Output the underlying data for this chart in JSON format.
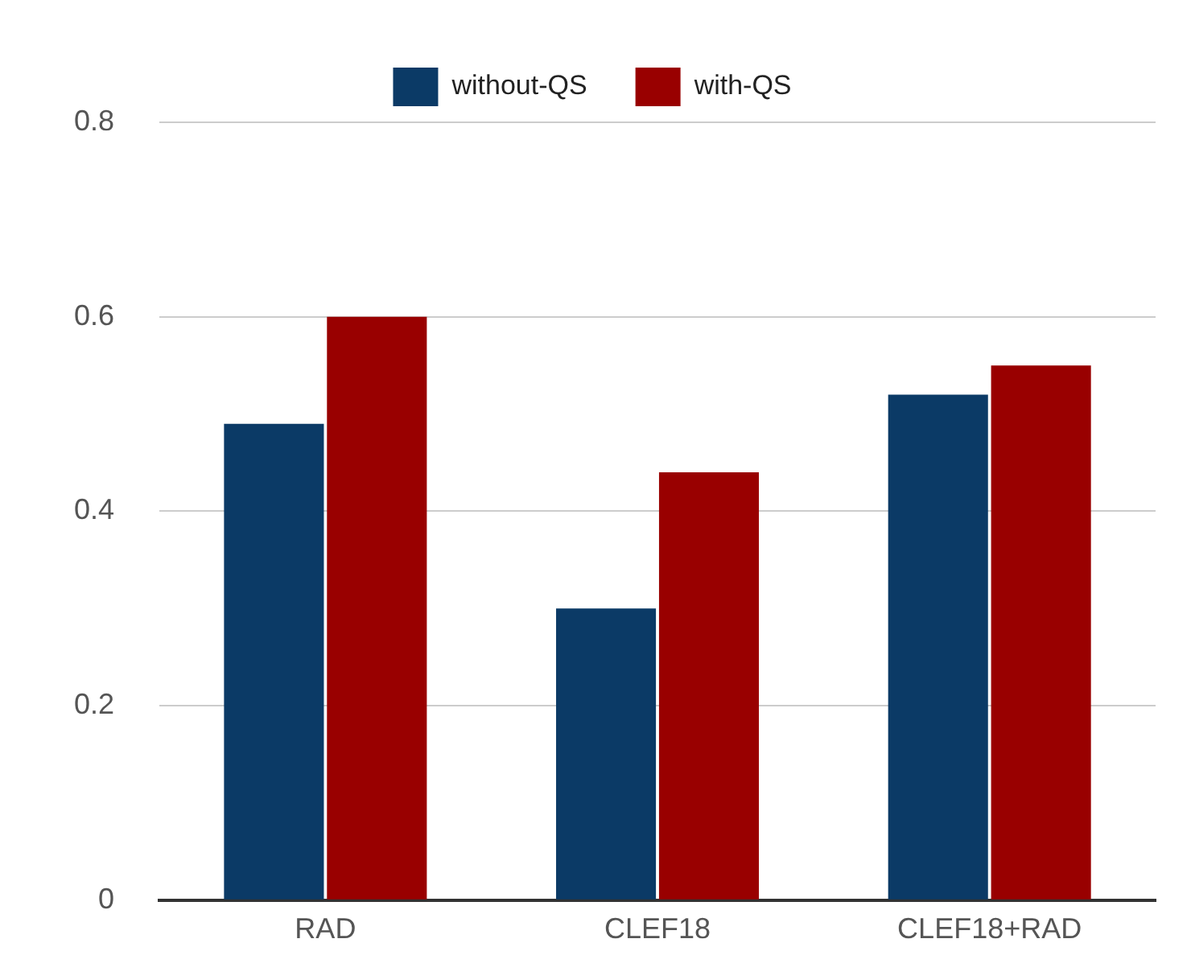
{
  "chart_data": {
    "type": "bar",
    "categories": [
      "RAD",
      "CLEF18",
      "CLEF18+RAD"
    ],
    "series": [
      {
        "name": "without-QS",
        "color": "#0b3a66",
        "values": [
          0.49,
          0.3,
          0.52
        ]
      },
      {
        "name": "with-QS",
        "color": "#990000",
        "values": [
          0.6,
          0.44,
          0.55
        ]
      }
    ],
    "ylim": [
      0,
      0.8
    ],
    "yticks": [
      {
        "value": 0,
        "label": "0"
      },
      0.2,
      0.4,
      0.6,
      0.8
    ],
    "grid": "y",
    "legend": "top"
  }
}
